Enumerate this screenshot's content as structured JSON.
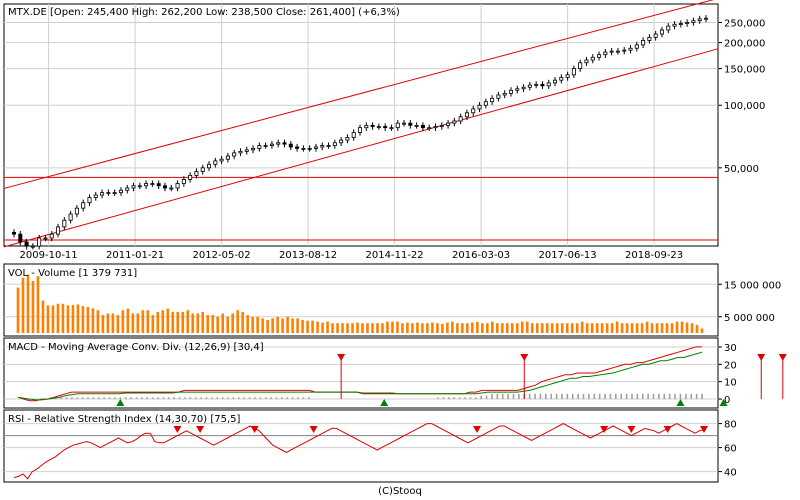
{
  "chart_data": [
    {
      "type": "candlestick",
      "title": "MTX.DE [Open: 245,400  High: 262,200  Low: 238,500  Close: 261,400] (+6,3%)",
      "y_scale": "log",
      "ylim": [
        22,
        300
      ],
      "y_ticks": [
        {
          "value": 250,
          "label": "250,000"
        },
        {
          "value": 200,
          "label": "200,000"
        },
        {
          "value": 150,
          "label": "150,000"
        },
        {
          "value": 100,
          "label": "100,000"
        },
        {
          "value": 50,
          "label": "50,000"
        }
      ],
      "x_tick_labels": [
        "2009-10-11",
        "2011-01-21",
        "2012-05-02",
        "2013-08-12",
        "2014-11-22",
        "2016-03-03",
        "2017-06-13",
        "2018-09-23"
      ],
      "x_tick_positions": [
        6,
        21,
        36,
        51,
        66,
        81,
        96,
        111
      ],
      "close": [
        24,
        22,
        21,
        21,
        23,
        23,
        24,
        26,
        28,
        30,
        32,
        34,
        36,
        37,
        38,
        38,
        38,
        39,
        40,
        41,
        41,
        42,
        42,
        41,
        40,
        40,
        42,
        44,
        46,
        48,
        50,
        52,
        54,
        55,
        57,
        59,
        60,
        61,
        62,
        64,
        64,
        65,
        66,
        65,
        63,
        62,
        62,
        62,
        63,
        64,
        64,
        66,
        68,
        70,
        74,
        78,
        80,
        79,
        79,
        78,
        78,
        82,
        82,
        80,
        80,
        78,
        78,
        79,
        80,
        82,
        84,
        88,
        92,
        96,
        100,
        104,
        108,
        112,
        114,
        118,
        120,
        122,
        125,
        126,
        124,
        128,
        132,
        136,
        140,
        150,
        160,
        165,
        170,
        175,
        180,
        182,
        182,
        184,
        188,
        195,
        205,
        212,
        220,
        230,
        240,
        245,
        247,
        250,
        255,
        260,
        262
      ],
      "channel_upper": [
        {
          "i": 0,
          "v": 41
        },
        {
          "i": 126,
          "v": 315
        }
      ],
      "channel_lower": [
        {
          "i": 0,
          "v": 21.5
        },
        {
          "i": 126,
          "v": 180
        }
      ],
      "h_lines": [
        45,
        22.5
      ],
      "colors": {
        "up": "#ffffff",
        "down": "#000000",
        "channel": "#e00000"
      }
    },
    {
      "type": "bar",
      "title": "VOL - Volume [1 379 731]",
      "ylim": [
        0,
        20000000
      ],
      "y_ticks": [
        {
          "value": 15000000,
          "label": "15 000 000"
        },
        {
          "value": 5000000,
          "label": "5 000 000"
        }
      ],
      "values": [
        14000000,
        17000000,
        18000000,
        16000000,
        17500000,
        10000000,
        8500000,
        8500000,
        9000000,
        9000000,
        8500000,
        8600000,
        8800000,
        8300000,
        8000000,
        7600000,
        7000000,
        5500000,
        6000000,
        6000000,
        5500000,
        7000000,
        7500000,
        6000000,
        6000000,
        7000000,
        7000000,
        5500000,
        6500000,
        7000000,
        7500000,
        6500000,
        6500000,
        6500000,
        7000000,
        6000000,
        6000000,
        6500000,
        5500000,
        5500000,
        5000000,
        6000000,
        5000000,
        6000000,
        7000000,
        6500000,
        5500000,
        5000000,
        5000000,
        4500000,
        4000000,
        4500000,
        5000000,
        4500000,
        5000000,
        4500000,
        4500000,
        4000000,
        3800000,
        3800000,
        3500000,
        3200000,
        3500000,
        3000000,
        3000000,
        3000000,
        3000000,
        3000000,
        3200000,
        3000000,
        3000000,
        3000000,
        3000000,
        3000000,
        3500000,
        3500000,
        3500000,
        3000000,
        3200000,
        3000000,
        3200000,
        3000000,
        3000000,
        3200000,
        3000000,
        2800000,
        3200000,
        3500000,
        3000000,
        3000000,
        3000000,
        3200000,
        3400000,
        3000000,
        3000000,
        3500000,
        3000000,
        3000000,
        3000000,
        3000000,
        3000000,
        3500000,
        3500000,
        3000000,
        3000000,
        3000000,
        3000000,
        3000000,
        3000000,
        3000000,
        3000000,
        3000000,
        3000000,
        3500000,
        3000000,
        3000000,
        3000000,
        3000000,
        3000000,
        3000000,
        3500000,
        3000000,
        3000000,
        3000000,
        3000000,
        3000000,
        3500000,
        3000000,
        3000000,
        3000000,
        3000000,
        3000000,
        3500000,
        3500000,
        3200000,
        3000000,
        2500000,
        1400000
      ],
      "color": "#ff8000"
    },
    {
      "type": "line",
      "title": "MACD - Moving Average Conv. Div. (12,26,9) [30,4]",
      "ylim": [
        -4,
        34
      ],
      "y_ticks": [
        {
          "value": 30,
          "label": "30"
        },
        {
          "value": 20,
          "label": "20"
        },
        {
          "value": 10,
          "label": "10"
        },
        {
          "value": 0,
          "label": "0"
        }
      ],
      "series": [
        {
          "color": "#e00000",
          "values": [
            1,
            0,
            -1,
            -1,
            0,
            0,
            1,
            2,
            3,
            4,
            4,
            4,
            4,
            4,
            4,
            4,
            4,
            4,
            4,
            4,
            4,
            4,
            4,
            4,
            4,
            4,
            4,
            4,
            5,
            5,
            5,
            5,
            5,
            5,
            5,
            5,
            5,
            5,
            5,
            5,
            5,
            5,
            5,
            5,
            5,
            5,
            5,
            5,
            5,
            5,
            4,
            4,
            4,
            4,
            4,
            4,
            4,
            4,
            3,
            3,
            3,
            3,
            3,
            3,
            3,
            3,
            3,
            3,
            3,
            3,
            3,
            3,
            3,
            3,
            3,
            3,
            4,
            4,
            5,
            5,
            5,
            5,
            5,
            5,
            5,
            6,
            7,
            8,
            10,
            11,
            12,
            13,
            14,
            14,
            15,
            15,
            15,
            15,
            16,
            17,
            18,
            19,
            20,
            20,
            21,
            21,
            22,
            23,
            24,
            25,
            26,
            27,
            28,
            29,
            30,
            30
          ]
        },
        {
          "color": "#008000",
          "values": [
            1,
            0.5,
            0,
            -0.5,
            -0.5,
            0,
            0.5,
            1,
            2,
            2.5,
            3,
            3,
            3,
            3,
            3,
            3,
            3,
            3,
            3.5,
            3.5,
            3.5,
            3.5,
            3.5,
            3.5,
            3.5,
            3.5,
            3.5,
            4,
            4,
            4,
            4,
            4,
            4,
            4,
            4,
            4,
            4,
            4,
            4,
            4,
            4,
            4,
            4,
            4,
            4,
            4,
            4,
            4,
            4,
            4,
            4,
            4,
            4,
            4,
            4,
            4,
            4,
            4,
            3.5,
            3.5,
            3.5,
            3.5,
            3.5,
            3.5,
            3,
            3,
            3,
            3,
            3,
            3,
            3,
            3,
            3,
            3,
            3,
            3,
            3,
            3,
            3.5,
            4,
            4,
            4,
            4,
            4,
            4,
            4.5,
            5,
            6,
            7,
            8,
            9,
            10,
            11,
            12,
            12,
            13,
            13,
            13.5,
            14,
            14.5,
            15,
            16,
            17,
            18,
            19,
            20,
            20,
            21,
            22,
            22,
            23,
            24,
            24,
            25,
            26,
            27
          ]
        }
      ],
      "histogram": [
        0,
        0,
        -1,
        -1,
        0,
        0,
        1,
        1,
        1,
        1,
        1,
        1,
        1,
        1,
        1,
        1,
        1,
        1,
        1,
        1,
        1,
        1,
        1,
        1,
        1,
        1,
        1,
        1,
        1,
        1,
        1,
        1,
        1,
        1,
        1,
        1,
        1,
        1,
        1,
        1,
        1,
        1,
        1,
        1,
        1,
        1,
        1,
        1,
        1,
        1,
        1,
        1,
        1,
        1,
        1,
        0,
        0,
        0,
        0,
        0,
        0,
        0,
        0,
        0,
        0,
        0,
        0,
        0,
        0,
        0,
        0,
        0,
        0,
        0,
        0,
        0,
        0,
        0,
        1,
        1,
        1,
        1,
        1,
        1,
        1,
        1,
        2,
        2,
        3,
        3,
        3,
        3,
        3,
        3,
        3,
        3,
        3,
        3,
        3,
        3,
        3,
        3,
        3,
        3,
        3,
        3,
        3,
        3,
        3,
        3,
        3,
        3,
        3,
        3,
        3,
        3,
        3,
        3,
        3,
        3,
        3,
        3,
        3,
        3,
        3,
        3,
        3,
        3
      ],
      "sell_signals": [
        60,
        94,
        138,
        142
      ],
      "buy_signals": [
        19,
        68,
        123,
        131,
        147
      ],
      "colors": {
        "histogram": "#a0a0a0",
        "sell": "#e00000",
        "buy": "#008000"
      }
    },
    {
      "type": "line",
      "title": "RSI - Relative Strength Index (14,30,70) [75,5]",
      "ylim": [
        33,
        88
      ],
      "y_ticks": [
        {
          "value": 80,
          "label": "80"
        },
        {
          "value": 60,
          "label": "60"
        },
        {
          "value": 40,
          "label": "40"
        }
      ],
      "reference_lines": [
        70
      ],
      "series": [
        {
          "color": "#e00000",
          "values": [
            35,
            36,
            38,
            34,
            40,
            42,
            45,
            48,
            50,
            52,
            55,
            58,
            60,
            62,
            63,
            64,
            65,
            64,
            62,
            60,
            62,
            64,
            66,
            68,
            66,
            64,
            65,
            67,
            70,
            72,
            72,
            65,
            64,
            64,
            66,
            68,
            70,
            72,
            74,
            72,
            70,
            68,
            66,
            64,
            62,
            64,
            66,
            68,
            70,
            72,
            74,
            76,
            78,
            76,
            74,
            70,
            66,
            62,
            60,
            58,
            56,
            58,
            60,
            62,
            64,
            66,
            68,
            70,
            72,
            74,
            76,
            76,
            74,
            72,
            70,
            68,
            66,
            64,
            62,
            60,
            58,
            60,
            62,
            64,
            66,
            68,
            70,
            72,
            74,
            76,
            78,
            80,
            80,
            78,
            76,
            74,
            72,
            70,
            68,
            66,
            64,
            66,
            68,
            70,
            72,
            74,
            76,
            78,
            78,
            76,
            74,
            72,
            70,
            68,
            66,
            68,
            70,
            72,
            74,
            76,
            78,
            80,
            78,
            76,
            74,
            72,
            70,
            68,
            70,
            72,
            74,
            76,
            78,
            76,
            74,
            72,
            70,
            72,
            74,
            76,
            75,
            74,
            72,
            74,
            76,
            78,
            80,
            78,
            76,
            74,
            72,
            74,
            75
          ]
        }
      ],
      "sell_signals": [
        45,
        51,
        66,
        82,
        128,
        163,
        170,
        180,
        190
      ],
      "colors": {
        "sell": "#e00000"
      }
    }
  ],
  "footer": "(C)Stooq"
}
